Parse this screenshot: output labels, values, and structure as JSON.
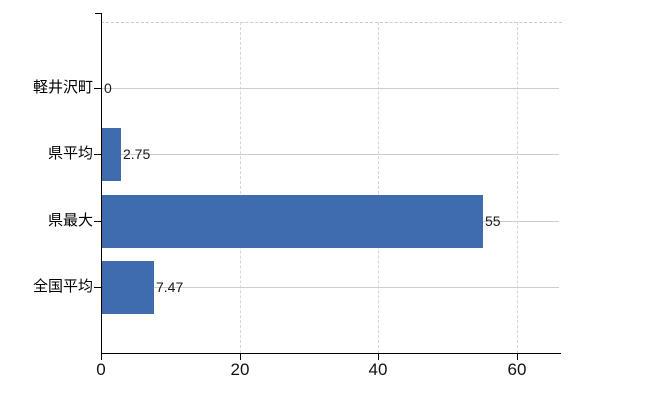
{
  "chart_data": {
    "type": "bar",
    "orientation": "horizontal",
    "title": "",
    "xlabel": "",
    "ylabel": "",
    "categories": [
      "軽井沢町",
      "県平均",
      "県最大",
      "全国平均"
    ],
    "values": [
      0,
      2.75,
      55,
      7.47
    ],
    "value_labels": [
      "0",
      "2.75",
      "55",
      "7.47"
    ],
    "x_ticks": [
      0,
      20,
      40,
      60
    ],
    "x_tick_labels": [
      "0",
      "20",
      "40",
      "60"
    ],
    "xlim": [
      0,
      66
    ],
    "grid": true,
    "legend_position": "none",
    "bar_color": "#3e6cae"
  },
  "colors": {
    "bar": "#3e6cae",
    "axis": "#000000",
    "horizontal_grid": "#c7d1c7",
    "vertical_grid": "#d6d6d6",
    "top_border_dash": "#c6ccc6",
    "background": "#ffffff",
    "label_text": "#1a1a1a"
  }
}
